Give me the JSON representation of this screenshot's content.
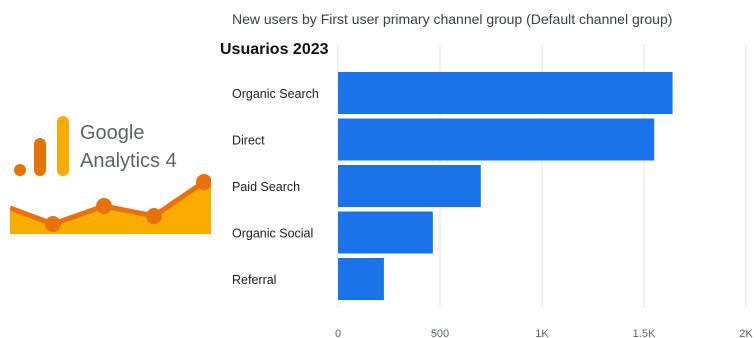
{
  "chart_data": {
    "type": "bar",
    "orientation": "horizontal",
    "title": "New users by First user primary channel group (Default channel group)",
    "categories": [
      "Organic Search",
      "Direct",
      "Paid Search",
      "Organic Social",
      "Referral"
    ],
    "values": [
      1640,
      1550,
      700,
      465,
      225
    ],
    "xlim": [
      0,
      2000
    ],
    "x_ticks": [
      "0",
      "500",
      "1K",
      "1.5K",
      "2K"
    ],
    "grid": true,
    "bar_color": "#1a73e8"
  },
  "overlay": {
    "heading": "Usuarios 2023"
  },
  "logo": {
    "line1": "Google",
    "line2": "Analytics 4",
    "bar_colors": [
      "#e37400",
      "#f9ab00"
    ],
    "line_color": "#e8710a",
    "fill_color": "#f9ab00"
  }
}
